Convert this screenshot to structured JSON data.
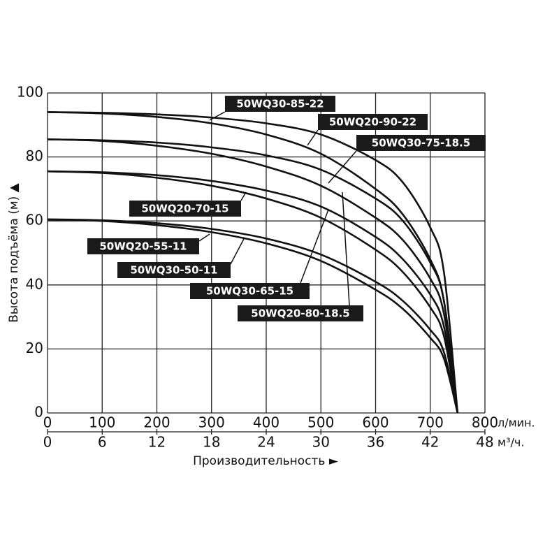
{
  "chart_data": {
    "type": "line",
    "x_label": "Производительность ►",
    "y_label": "Высота подъёма (м) ▲",
    "x_unit": "л/мин.",
    "x2_unit": "м³/ч.",
    "x": [
      0,
      100,
      200,
      300,
      400,
      500,
      600,
      650,
      700,
      725,
      750
    ],
    "xlim": [
      0,
      800
    ],
    "xticks": [
      0,
      100,
      200,
      300,
      400,
      500,
      600,
      700,
      800
    ],
    "x2lim": [
      0,
      48
    ],
    "x2ticks": [
      0,
      6,
      12,
      18,
      24,
      30,
      36,
      42,
      48
    ],
    "ylim": [
      0,
      100
    ],
    "yticks": [
      0,
      20,
      40,
      60,
      80,
      100
    ],
    "grid": true,
    "series": [
      {
        "name": "50WQ30-85-22",
        "color": "#111111",
        "values": [
          94,
          93.8,
          93.3,
          92.3,
          90.5,
          87,
          79,
          72,
          58,
          44,
          0
        ]
      },
      {
        "name": "50WQ20-90-22",
        "color": "#111111",
        "values": [
          94,
          93.6,
          92.5,
          90.5,
          87,
          81,
          70,
          62,
          48,
          35,
          0
        ]
      },
      {
        "name": "50WQ30-75-18.5",
        "color": "#111111",
        "values": [
          85.5,
          85.2,
          84.5,
          83,
          80.5,
          76,
          67,
          60,
          47,
          35,
          0
        ]
      },
      {
        "name": "50WQ20-80-18.5",
        "color": "#111111",
        "values": [
          85.5,
          85,
          83.5,
          81,
          77,
          71,
          61,
          54,
          42,
          31,
          0
        ]
      },
      {
        "name": "50WQ20-70-15",
        "color": "#111111",
        "values": [
          75.5,
          75.2,
          74.3,
          72.5,
          69.5,
          64.5,
          55,
          48,
          37,
          27,
          0
        ]
      },
      {
        "name": "50WQ30-65-15",
        "color": "#111111",
        "values": [
          75.5,
          75,
          73.5,
          71,
          67,
          61,
          51,
          44,
          33,
          24,
          0
        ]
      },
      {
        "name": "50WQ20-55-11",
        "color": "#111111",
        "values": [
          60.5,
          60.2,
          59.3,
          57.5,
          54.5,
          49.5,
          41,
          35,
          26,
          19,
          0
        ]
      },
      {
        "name": "50WQ30-50-11",
        "color": "#111111",
        "values": [
          60.5,
          60,
          58.7,
          56.5,
          53,
          47.5,
          38.5,
          32.5,
          23.5,
          17,
          0
        ]
      }
    ]
  }
}
